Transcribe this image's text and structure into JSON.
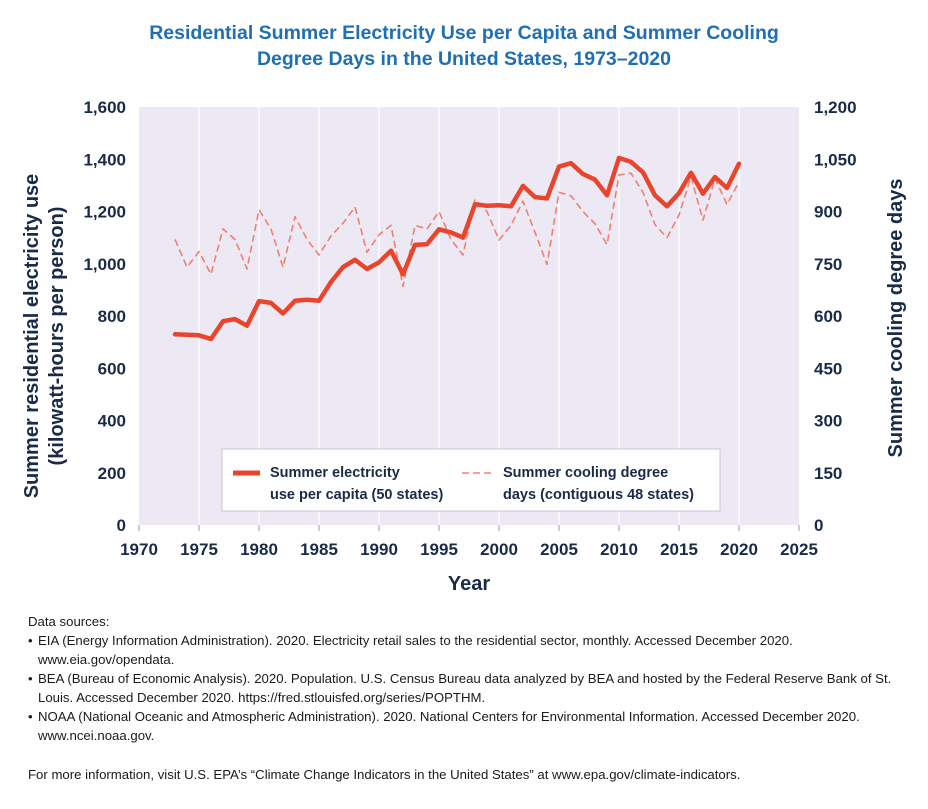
{
  "title": {
    "line1": "Residential Summer Electricity Use per Capita and Summer Cooling",
    "line2": "Degree Days in the United States, 1973–2020"
  },
  "chart_data": {
    "type": "line",
    "title": "Residential Summer Electricity Use per Capita and Summer Cooling Degree Days in the United States, 1973–2020",
    "xlabel": "Year",
    "ylabel": "Summer residential electricity use (kilowatt-hours per person)",
    "y2label": "Summer cooling degree days",
    "xlim": [
      1970,
      2025
    ],
    "ylim": [
      0,
      1600
    ],
    "y2lim": [
      0,
      1200
    ],
    "x_ticks": [
      "1970",
      "1975",
      "1980",
      "1985",
      "1990",
      "1995",
      "2000",
      "2005",
      "2010",
      "2015",
      "2020",
      "2025"
    ],
    "y_ticks": [
      "0",
      "200",
      "400",
      "600",
      "800",
      "1,000",
      "1,200",
      "1,400",
      "1,600"
    ],
    "y2_ticks": [
      "0",
      "150",
      "300",
      "450",
      "600",
      "750",
      "900",
      "1,050",
      "1,200"
    ],
    "grid": false,
    "legend_position": "bottom-center",
    "x": [
      1973,
      1974,
      1975,
      1976,
      1977,
      1978,
      1979,
      1980,
      1981,
      1982,
      1983,
      1984,
      1985,
      1986,
      1987,
      1988,
      1989,
      1990,
      1991,
      1992,
      1993,
      1994,
      1995,
      1996,
      1997,
      1998,
      1999,
      2000,
      2001,
      2002,
      2003,
      2004,
      2005,
      2006,
      2007,
      2008,
      2009,
      2010,
      2011,
      2012,
      2013,
      2014,
      2015,
      2016,
      2017,
      2018,
      2019,
      2020
    ],
    "series": [
      {
        "name": "Summer electricity use per capita (50 states)",
        "axis": "left",
        "style": "solid",
        "color": "#e8452c",
        "values": [
          730,
          728,
          726,
          712,
          780,
          788,
          763,
          857,
          850,
          810,
          858,
          862,
          858,
          930,
          987,
          1015,
          980,
          1005,
          1050,
          960,
          1072,
          1075,
          1132,
          1120,
          1100,
          1228,
          1222,
          1224,
          1220,
          1298,
          1255,
          1250,
          1372,
          1385,
          1343,
          1322,
          1262,
          1405,
          1390,
          1350,
          1262,
          1220,
          1270,
          1348,
          1268,
          1332,
          1290,
          1383
        ]
      },
      {
        "name": "Summer cooling degree days (contiguous 48 states)",
        "axis": "right",
        "style": "dashed",
        "color": "#f08070",
        "values": [
          820,
          740,
          785,
          720,
          850,
          820,
          735,
          905,
          850,
          740,
          885,
          820,
          775,
          830,
          866,
          913,
          783,
          833,
          860,
          685,
          860,
          850,
          900,
          820,
          775,
          935,
          900,
          818,
          860,
          930,
          840,
          748,
          955,
          945,
          900,
          865,
          805,
          1005,
          1010,
          955,
          862,
          825,
          890,
          1000,
          875,
          995,
          920,
          985
        ]
      }
    ]
  },
  "legend": {
    "electricity_line1": "Summer electricity",
    "electricity_line2": "use per capita (50 states)",
    "cdd_line1": "Summer cooling degree",
    "cdd_line2": "days (contiguous 48 states)"
  },
  "axes": {
    "x_title": "Year",
    "y_left_line1": "Summer residential electricity use",
    "y_left_line2": "(kilowatt-hours per person)",
    "y_right": "Summer cooling degree days"
  },
  "sources": {
    "heading": "Data sources:",
    "items": [
      "EIA (Energy Information Administration). 2020. Electricity retail sales to the residential sector, monthly. Accessed December 2020. www.eia.gov/opendata.",
      "BEA (Bureau of Economic Analysis). 2020. Population. U.S. Census Bureau data analyzed by BEA and hosted by the Federal Reserve Bank of St. Louis. Accessed December 2020. https://fred.stlouisfed.org/series/POPTHM.",
      "NOAA (National Oceanic and Atmospheric Administration). 2020. National Centers for Environmental Information. Accessed December 2020. www.ncei.noaa.gov."
    ],
    "more_info": "For more information, visit U.S. EPA’s “Climate Change Indicators in the United States” at www.epa.gov/climate-indicators."
  },
  "colors": {
    "plot_background": "#ede9f4",
    "title": "#1f6fb2",
    "axis_text": "#1a2b47"
  }
}
